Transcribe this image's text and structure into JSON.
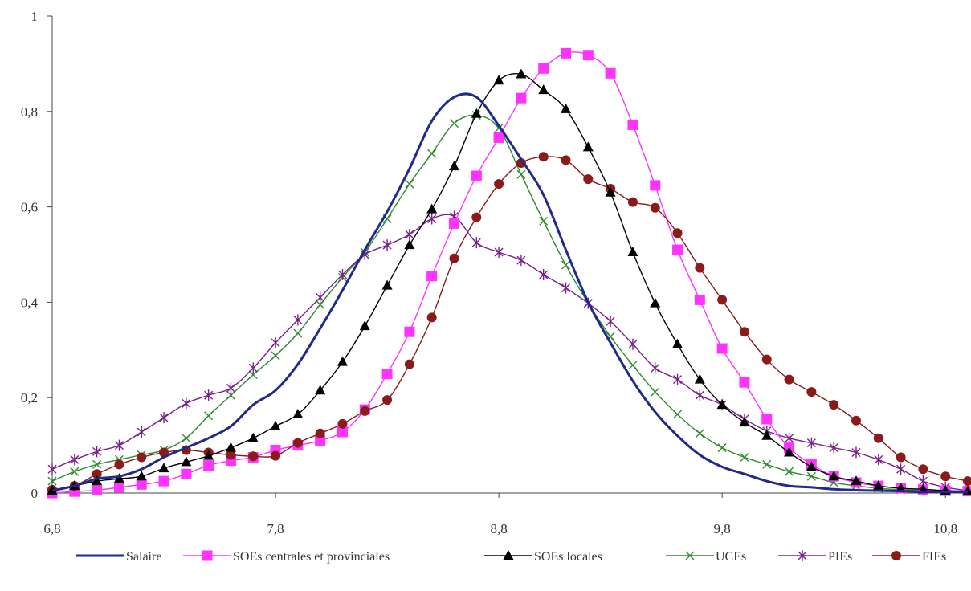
{
  "chart_data": {
    "type": "line",
    "title": "",
    "xlabel": "",
    "ylabel": "",
    "xlim": [
      6.8,
      10.9
    ],
    "ylim": [
      0,
      1
    ],
    "x_ticks": [
      6.8,
      7.8,
      8.8,
      9.8,
      10.8
    ],
    "x_tick_labels": [
      "6,8",
      "7,8",
      "8,8",
      "9,8",
      "10,8"
    ],
    "y_ticks": [
      0,
      0.2,
      0.4,
      0.6,
      0.8,
      1
    ],
    "y_tick_labels": [
      "0",
      "0,2",
      "0,4",
      "0,6",
      "0,8",
      "1"
    ],
    "grid": false,
    "legend_position": "bottom",
    "x": [
      6.8,
      6.9,
      7.0,
      7.1,
      7.2,
      7.3,
      7.4,
      7.5,
      7.6,
      7.7,
      7.8,
      7.9,
      8.0,
      8.1,
      8.2,
      8.3,
      8.4,
      8.5,
      8.6,
      8.7,
      8.8,
      8.9,
      9.0,
      9.1,
      9.2,
      9.3,
      9.4,
      9.5,
      9.6,
      9.7,
      9.8,
      9.9,
      10.0,
      10.1,
      10.2,
      10.3,
      10.4,
      10.5,
      10.6,
      10.7,
      10.8,
      10.9
    ],
    "series": [
      {
        "name": "Salaire",
        "color": "#1f2a8c",
        "marker": "none",
        "values": [
          0.005,
          0.015,
          0.03,
          0.035,
          0.05,
          0.075,
          0.095,
          0.115,
          0.14,
          0.185,
          0.215,
          0.27,
          0.345,
          0.425,
          0.51,
          0.59,
          0.68,
          0.78,
          0.83,
          0.83,
          0.77,
          0.7,
          0.625,
          0.51,
          0.4,
          0.315,
          0.235,
          0.17,
          0.12,
          0.08,
          0.055,
          0.04,
          0.025,
          0.015,
          0.012,
          0.008,
          0.006,
          0.005,
          0.004,
          0.003,
          0.002,
          0.002
        ]
      },
      {
        "name": "SOEs centrales et provinciales",
        "color": "#ff33ff",
        "marker": "square",
        "values": [
          0.0,
          0.003,
          0.006,
          0.012,
          0.018,
          0.025,
          0.04,
          0.058,
          0.068,
          0.075,
          0.09,
          0.1,
          0.11,
          0.128,
          0.175,
          0.25,
          0.338,
          0.455,
          0.565,
          0.665,
          0.745,
          0.828,
          0.89,
          0.922,
          0.918,
          0.88,
          0.772,
          0.645,
          0.51,
          0.405,
          0.303,
          0.232,
          0.155,
          0.095,
          0.06,
          0.035,
          0.022,
          0.015,
          0.01,
          0.007,
          0.005,
          0.004
        ]
      },
      {
        "name": "SOEs locales",
        "color": "#000000",
        "marker": "triangle",
        "values": [
          0.005,
          0.015,
          0.025,
          0.03,
          0.035,
          0.052,
          0.065,
          0.078,
          0.095,
          0.115,
          0.14,
          0.165,
          0.215,
          0.275,
          0.35,
          0.435,
          0.52,
          0.595,
          0.685,
          0.795,
          0.865,
          0.878,
          0.845,
          0.805,
          0.725,
          0.63,
          0.505,
          0.398,
          0.312,
          0.238,
          0.185,
          0.148,
          0.12,
          0.085,
          0.055,
          0.035,
          0.025,
          0.015,
          0.01,
          0.008,
          0.005,
          0.004
        ]
      },
      {
        "name": "UCEs",
        "color": "#2e8b2e",
        "marker": "x",
        "values": [
          0.025,
          0.045,
          0.06,
          0.07,
          0.08,
          0.09,
          0.115,
          0.162,
          0.205,
          0.248,
          0.288,
          0.335,
          0.395,
          0.452,
          0.505,
          0.575,
          0.648,
          0.712,
          0.775,
          0.792,
          0.765,
          0.668,
          0.57,
          0.478,
          0.398,
          0.328,
          0.268,
          0.212,
          0.165,
          0.125,
          0.095,
          0.075,
          0.06,
          0.045,
          0.035,
          0.022,
          0.015,
          0.01,
          0.007,
          0.005,
          0.003,
          0.002
        ]
      },
      {
        "name": "PIEs",
        "color": "#7a1f8c",
        "marker": "star",
        "values": [
          0.05,
          0.07,
          0.087,
          0.1,
          0.128,
          0.158,
          0.188,
          0.205,
          0.22,
          0.262,
          0.315,
          0.363,
          0.41,
          0.458,
          0.5,
          0.52,
          0.542,
          0.575,
          0.58,
          0.525,
          0.505,
          0.488,
          0.458,
          0.43,
          0.398,
          0.36,
          0.312,
          0.262,
          0.238,
          0.205,
          0.185,
          0.155,
          0.13,
          0.115,
          0.105,
          0.095,
          0.085,
          0.07,
          0.05,
          0.025,
          0.012,
          0.005
        ]
      },
      {
        "name": "FIEs",
        "color": "#8b1a1a",
        "marker": "circle",
        "values": [
          0.007,
          0.015,
          0.04,
          0.06,
          0.075,
          0.085,
          0.09,
          0.085,
          0.08,
          0.077,
          0.078,
          0.105,
          0.125,
          0.145,
          0.172,
          0.195,
          0.27,
          0.368,
          0.492,
          0.578,
          0.648,
          0.692,
          0.705,
          0.698,
          0.658,
          0.638,
          0.61,
          0.598,
          0.545,
          0.472,
          0.405,
          0.338,
          0.28,
          0.238,
          0.212,
          0.185,
          0.152,
          0.115,
          0.075,
          0.05,
          0.035,
          0.025
        ]
      }
    ]
  }
}
